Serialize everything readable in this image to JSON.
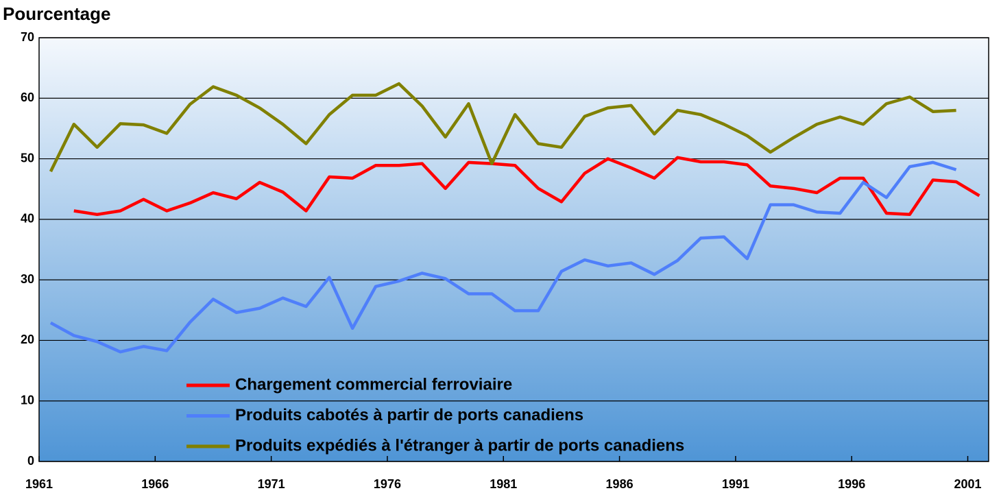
{
  "chart_data": {
    "type": "line",
    "title": "Pourcentage",
    "x": [
      1961,
      1962,
      1963,
      1964,
      1965,
      1966,
      1967,
      1968,
      1969,
      1970,
      1971,
      1972,
      1973,
      1974,
      1975,
      1976,
      1977,
      1978,
      1979,
      1980,
      1981,
      1982,
      1983,
      1984,
      1985,
      1986,
      1987,
      1988,
      1989,
      1990,
      1991,
      1992,
      1993,
      1994,
      1995,
      1996,
      1997,
      1998,
      1999,
      2000,
      2001
    ],
    "series": [
      {
        "name": "Chargement commercial ferroviaire",
        "color": "#ff0000",
        "values": [
          null,
          41.4,
          40.8,
          41.4,
          43.3,
          41.4,
          42.7,
          44.4,
          43.4,
          46.1,
          44.5,
          41.4,
          47.0,
          46.8,
          48.9,
          48.9,
          49.2,
          45.1,
          49.4,
          49.2,
          48.9,
          45.1,
          42.9,
          47.6,
          50.0,
          48.5,
          46.8,
          50.2,
          49.5,
          49.5,
          49.0,
          45.5,
          45.1,
          44.4,
          46.8,
          46.8,
          41.0,
          40.8,
          46.5,
          46.2,
          43.9
        ]
      },
      {
        "name": "Produits cabotés à partir de ports canadiens",
        "color": "#4f7ffa",
        "values": [
          22.9,
          20.8,
          19.8,
          18.1,
          19.0,
          18.3,
          23.0,
          26.8,
          24.6,
          25.3,
          27.0,
          25.6,
          30.4,
          22.0,
          28.9,
          29.8,
          31.1,
          30.2,
          27.7,
          27.7,
          24.9,
          24.9,
          31.4,
          33.3,
          32.3,
          32.8,
          30.9,
          33.2,
          36.9,
          37.1,
          33.5,
          42.4,
          42.4,
          41.2,
          41.0,
          46.1,
          43.6,
          48.7,
          49.4,
          48.2,
          null
        ]
      },
      {
        "name": "Produits expédiés à l'étranger à partir de ports canadiens",
        "color": "#808000",
        "values": [
          47.9,
          55.7,
          51.9,
          55.8,
          55.6,
          54.2,
          59.0,
          61.9,
          60.5,
          58.4,
          55.7,
          52.5,
          57.3,
          60.5,
          60.5,
          62.4,
          58.7,
          53.6,
          59.1,
          49.2,
          57.3,
          52.5,
          51.9,
          57.0,
          58.4,
          58.8,
          54.1,
          58.0,
          57.3,
          55.7,
          53.8,
          51.1,
          53.5,
          55.7,
          56.9,
          55.7,
          59.1,
          60.2,
          57.8,
          58.0,
          null
        ]
      }
    ],
    "xlim": [
      1960.5,
      2001.4
    ],
    "xticks": [
      {
        "value": 1960.5,
        "label": "1961"
      },
      {
        "value": 1965.5,
        "label": "1966"
      },
      {
        "value": 1970.5,
        "label": "1971"
      },
      {
        "value": 1975.5,
        "label": "1976"
      },
      {
        "value": 1980.5,
        "label": "1981"
      },
      {
        "value": 1985.5,
        "label": "1986"
      },
      {
        "value": 1990.5,
        "label": "1991"
      },
      {
        "value": 1995.5,
        "label": "1996"
      },
      {
        "value": 2000.5,
        "label": "2001"
      }
    ],
    "ylim": [
      0,
      70
    ],
    "yticks": [
      0,
      10,
      20,
      30,
      40,
      50,
      60,
      70
    ],
    "grid": true
  }
}
